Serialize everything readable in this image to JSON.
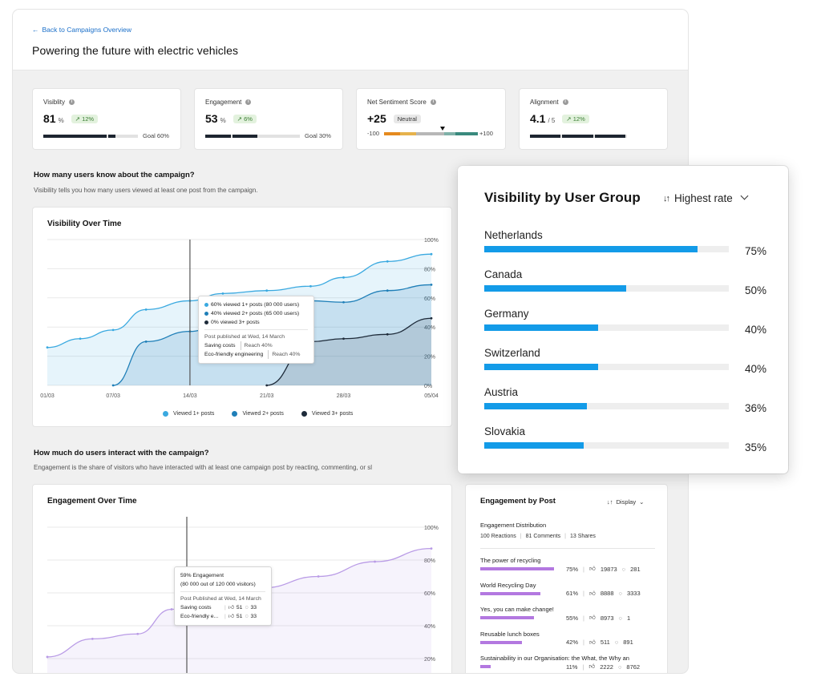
{
  "header": {
    "back_link": "Back to Campaigns Overview",
    "title": "Powering the future with electric vehicles"
  },
  "kpis": {
    "visibility": {
      "label": "Visiblity",
      "value": "81",
      "unit": "%",
      "trend": "12%",
      "goal": "Goal 60%",
      "progress": 0.81
    },
    "engagement": {
      "label": "Engagement",
      "value": "53",
      "unit": "%",
      "trend": "6%",
      "goal": "Goal 30%",
      "progress": 0.53
    },
    "sentiment": {
      "label": "Net Sentiment Score",
      "value": "+25",
      "badge": "Neutral",
      "min": "-100",
      "max": "+100",
      "score": 25
    },
    "alignment": {
      "label": "Alignment",
      "value": "4.1",
      "unit": "/ 5",
      "trend": "12%",
      "progress": 0.82
    }
  },
  "visibility_section": {
    "title": "How many users know about the campaign?",
    "description": "Visibility tells you how many users viewed at least one post from the campaign."
  },
  "engagement_section": {
    "title": "How much do users interact with the campaign?",
    "description": "Engagement is the share of visitors who have interacted with at least one campaign post by reacting, commenting, or sl"
  },
  "visibility_chart": {
    "title": "Visibility Over Time",
    "tooltip": {
      "row1": "60% viewed 1+ posts (80 000 users)",
      "row2": "40% viewed 2+ posts (65 000 users)",
      "row3": "0% viewed 3+ posts",
      "published": "Post published at Wed, 14 March",
      "post1_name": "Saving costs",
      "post1_reach": "Reach 40%",
      "post2_name": "Eco-friendly engineering",
      "post2_reach": "Reach 40%"
    },
    "legend": [
      "Viewed 1+ posts",
      "Viewed 2+ posts",
      "Viewed 3+ posts"
    ]
  },
  "engagement_chart": {
    "title": "Engagement Over Time",
    "tooltip": {
      "line1": "59% Engagement",
      "line2": "(80 000 out of 120 000 visitors)",
      "published": "Post Published at Wed, 14 March",
      "post1_name": "Saving costs",
      "post1_likes": "51",
      "post1_comments": "33",
      "post2_name": "Eco-friendly e...",
      "post2_likes": "51",
      "post2_comments": "33"
    }
  },
  "user_group_panel": {
    "title": "Visibility by User Group",
    "sort_label": "Highest rate"
  },
  "post_panel": {
    "title": "Engagement by Post",
    "sort_label": "Display",
    "distribution_label": "Engagement Distribution",
    "reactions": "100 Reactions",
    "comments": "81 Comments",
    "shares": "13 Shares",
    "posts": [
      {
        "title": "The power of recycling",
        "pct": "75%",
        "likes": "19873",
        "comments": "281",
        "value": 0.75
      },
      {
        "title": "World Recycling Day",
        "pct": "61%",
        "likes": "8888",
        "comments": "3333",
        "value": 0.61
      },
      {
        "title": "Yes, you can make change!",
        "pct": "55%",
        "likes": "8973",
        "comments": "1",
        "value": 0.55
      },
      {
        "title": "Reusable lunch boxes",
        "pct": "42%",
        "likes": "511",
        "comments": "891",
        "value": 0.42
      },
      {
        "title": "Sustainability in our Organisation: the What, the Why an",
        "pct": "11%",
        "likes": "2222",
        "comments": "8762",
        "value": 0.11
      }
    ]
  },
  "colors": {
    "series1": "#3aa9e0",
    "series2": "#1f7fb8",
    "series3": "#1e2b3a",
    "engagement": "#b99be6",
    "group_bar": "#139be8",
    "post_bar": "#b378e0",
    "trend_bg": "#e3f2de"
  },
  "chart_data": [
    {
      "type": "area",
      "title": "Visibility Over Time",
      "xlabel": "",
      "ylabel": "",
      "x_ticks": [
        "01/03",
        "07/03",
        "14/03",
        "21/03",
        "28/03",
        "05/04"
      ],
      "y_ticks": [
        "100%",
        "80%",
        "60%",
        "40%",
        "20%",
        "0%"
      ],
      "ylim": [
        0,
        100
      ],
      "x": [
        0,
        6,
        13,
        20,
        27,
        35
      ],
      "series": [
        {
          "name": "Viewed 1+ posts",
          "x": [
            0,
            3,
            6,
            9,
            13,
            16,
            20,
            24,
            27,
            31,
            35
          ],
          "values": [
            26,
            32,
            38,
            52,
            58,
            63,
            65,
            68,
            74,
            85,
            90
          ]
        },
        {
          "name": "Viewed 2+ posts",
          "x": [
            6,
            9,
            13,
            16,
            20,
            24,
            27,
            31,
            35
          ],
          "values": [
            0,
            30,
            37,
            43,
            52,
            58,
            57,
            65,
            69
          ]
        },
        {
          "name": "Viewed 3+ posts",
          "x": [
            20,
            24,
            27,
            31,
            35
          ],
          "values": [
            0,
            30,
            32,
            35,
            46
          ]
        }
      ],
      "grid": true,
      "legend": "bottom"
    },
    {
      "type": "area",
      "title": "Engagement Over Time",
      "xlabel": "",
      "ylabel": "",
      "y_ticks": [
        "100%",
        "80%",
        "60%",
        "40%",
        "20%"
      ],
      "ylim": [
        0,
        100
      ],
      "series": [
        {
          "name": "",
          "x": [
            0,
            4,
            8,
            11,
            15,
            19,
            24,
            29,
            34
          ],
          "values": [
            21,
            32,
            35,
            50,
            53,
            63,
            70,
            79,
            87
          ]
        }
      ],
      "grid": true
    },
    {
      "type": "bar",
      "title": "Visibility by User Group",
      "categories": [
        "Netherlands",
        "Canada",
        "Germany",
        "Switzerland",
        "Austria",
        "Slovakia"
      ],
      "values": [
        75,
        50,
        40,
        40,
        36,
        35
      ],
      "value_labels": [
        "75%",
        "50%",
        "40%",
        "40%",
        "36%",
        "35%"
      ],
      "orientation": "horizontal",
      "xlim": [
        0,
        86
      ]
    }
  ]
}
